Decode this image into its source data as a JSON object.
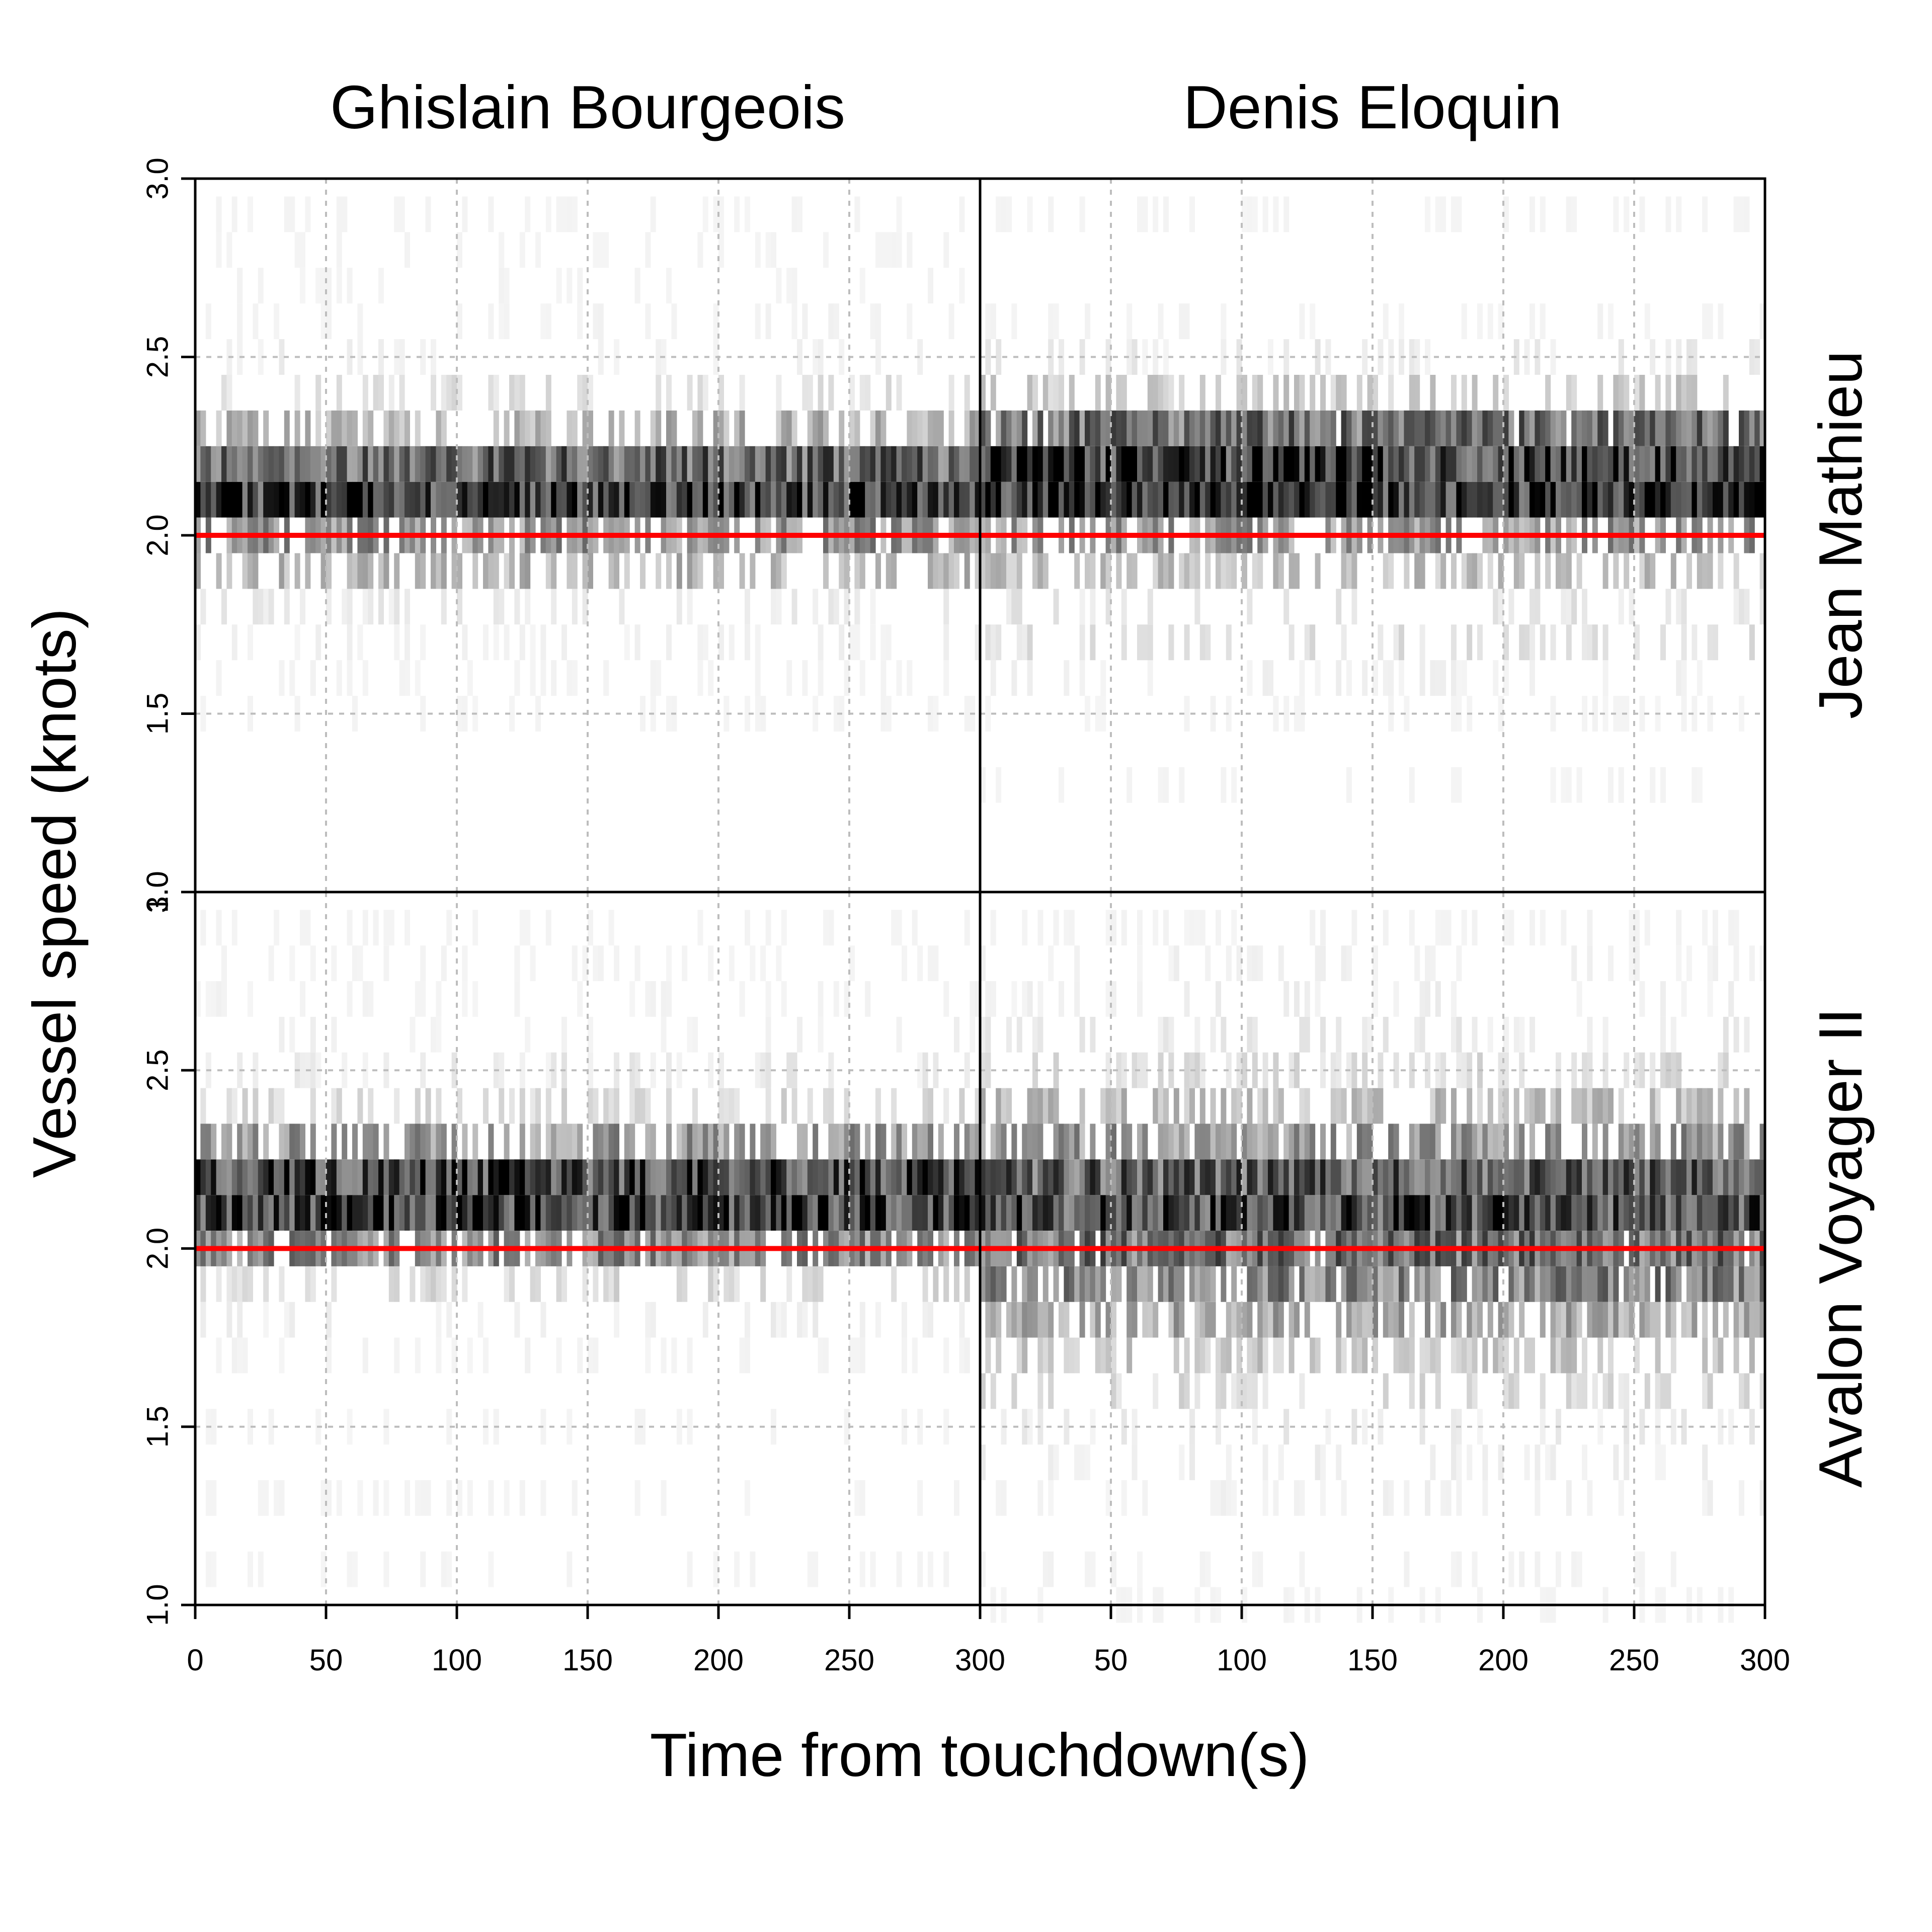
{
  "chart_data": {
    "type": "heatmap",
    "xlabel": "Time from touchdown(s)",
    "ylabel": "Vessel speed (knots)",
    "columns": [
      "Ghislain Bourgeois",
      "Denis Eloquin"
    ],
    "rows": [
      "Jean Mathieu",
      "Avalon Voyager II"
    ],
    "xlim": [
      0,
      300
    ],
    "ylim": [
      1.0,
      3.0
    ],
    "x_ticks": [
      0,
      50,
      100,
      150,
      200,
      250,
      300
    ],
    "y_ticks": [
      1.0,
      1.5,
      2.0,
      2.5,
      3.0
    ],
    "x_tick_labels": [
      "0",
      "50",
      "100",
      "150",
      "200",
      "250",
      "300"
    ],
    "y_tick_labels": [
      "1.0",
      "1.5",
      "2.0",
      "2.5",
      "3.0"
    ],
    "bin_width_knots": 0.1,
    "bin_width_s": 2,
    "grid": true,
    "color_scale": "white-to-black (sample density)",
    "reference_line": {
      "y": 2.0,
      "color": "#ff0000"
    },
    "panels": [
      {
        "row": "Jean Mathieu",
        "column": "Ghislain Bourgeois",
        "speed_bins": [
          1.5,
          1.6,
          1.7,
          1.8,
          1.9,
          2.0,
          2.1,
          2.2,
          2.3,
          2.4,
          2.5,
          2.6,
          2.7,
          2.8,
          2.9
        ],
        "relative_density": [
          0.02,
          0.03,
          0.05,
          0.08,
          0.28,
          0.42,
          0.8,
          0.6,
          0.3,
          0.12,
          0.06,
          0.04,
          0.03,
          0.02,
          0.01
        ]
      },
      {
        "row": "Jean Mathieu",
        "column": "Denis Eloquin",
        "speed_bins": [
          1.3,
          1.5,
          1.6,
          1.7,
          1.8,
          1.9,
          2.0,
          2.1,
          2.2,
          2.3,
          2.4,
          2.5,
          2.6,
          2.9
        ],
        "relative_density": [
          0.02,
          0.03,
          0.05,
          0.12,
          0.1,
          0.25,
          0.4,
          0.85,
          0.78,
          0.55,
          0.2,
          0.08,
          0.04,
          0.02
        ]
      },
      {
        "row": "Avalon Voyager II",
        "column": "Ghislain Bourgeois",
        "speed_bins": [
          1.1,
          1.3,
          1.5,
          1.7,
          1.8,
          1.9,
          2.0,
          2.1,
          2.2,
          2.3,
          2.4,
          2.5,
          2.6,
          2.7,
          2.8,
          2.9
        ],
        "relative_density": [
          0.02,
          0.02,
          0.02,
          0.04,
          0.06,
          0.15,
          0.45,
          0.78,
          0.72,
          0.4,
          0.15,
          0.08,
          0.05,
          0.04,
          0.03,
          0.02
        ]
      },
      {
        "row": "Avalon Voyager II",
        "column": "Denis Eloquin",
        "speed_bins": [
          1.0,
          1.1,
          1.3,
          1.4,
          1.5,
          1.6,
          1.7,
          1.8,
          1.9,
          2.0,
          2.1,
          2.2,
          2.3,
          2.4,
          2.5,
          2.6,
          2.7,
          2.8,
          2.9
        ],
        "relative_density": [
          0.03,
          0.04,
          0.05,
          0.06,
          0.08,
          0.14,
          0.22,
          0.35,
          0.48,
          0.55,
          0.72,
          0.62,
          0.4,
          0.25,
          0.14,
          0.08,
          0.06,
          0.05,
          0.04
        ]
      }
    ]
  },
  "colors": {
    "reference_line": "#ff0000",
    "grid": "#bdbdbd",
    "frame": "#000000",
    "background": "#ffffff"
  }
}
